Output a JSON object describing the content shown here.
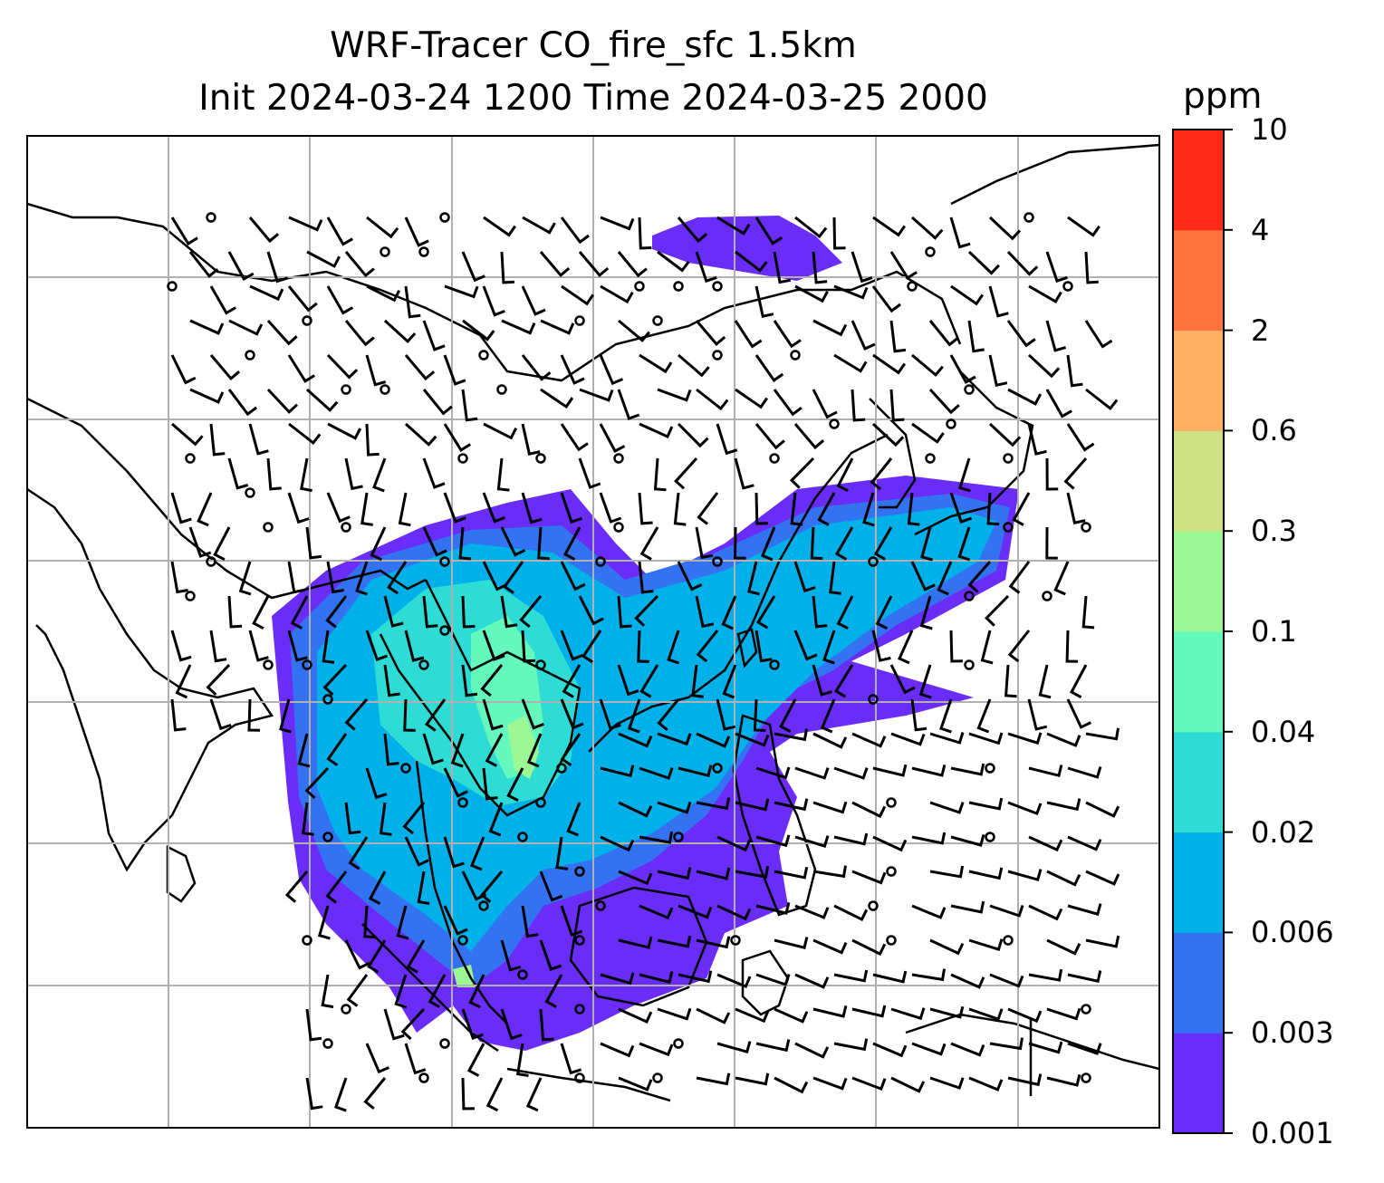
{
  "title": {
    "line1": "WRF-Tracer CO_fire_sfc 1.5km",
    "line2": "Init 2024-03-24 1200 Time 2024-03-25 2000"
  },
  "colorbar": {
    "unit": "ppm",
    "levels": [
      "0.001",
      "0.003",
      "0.006",
      "0.02",
      "0.04",
      "0.1",
      "0.3",
      "0.6",
      "2",
      "4",
      "10"
    ],
    "colors": [
      "#6a2cf7",
      "#3373f1",
      "#00b0e9",
      "#2fdcd5",
      "#64f8bc",
      "#9cf895",
      "#d0e084",
      "#feb063",
      "#fe733d",
      "#fe2a17"
    ]
  }
}
